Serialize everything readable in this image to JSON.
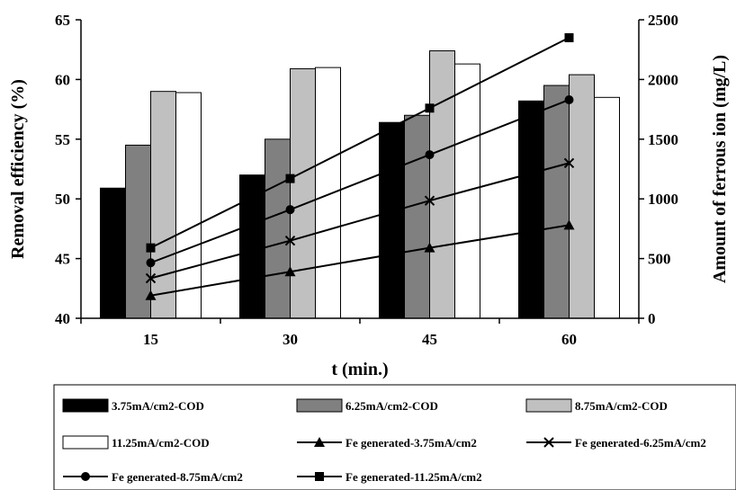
{
  "chart_data": {
    "type": "bar",
    "xlabel": "t (min.)",
    "ylabel": "Removal efficiency (%)",
    "y2label": "Amount of ferrous ion (mg/L)",
    "categories": [
      "15",
      "30",
      "45",
      "60"
    ],
    "ylim": [
      40,
      65
    ],
    "yticks": [
      "40",
      "45",
      "50",
      "55",
      "60",
      "65"
    ],
    "y2lim": [
      0,
      2500
    ],
    "y2ticks": [
      "0",
      "500",
      "1000",
      "1500",
      "2000",
      "2500"
    ],
    "grid": false,
    "legend_position": "bottom",
    "bar_series": [
      {
        "name": "3.75mA/cm2-COD",
        "color": "#000000",
        "values": [
          50.9,
          52.0,
          56.4,
          58.2
        ]
      },
      {
        "name": "6.25mA/cm2-COD",
        "color": "#808080",
        "values": [
          54.5,
          55.0,
          57.0,
          59.5
        ]
      },
      {
        "name": "8.75mA/cm2-COD",
        "color": "#c0c0c0",
        "values": [
          59.0,
          60.9,
          62.4,
          60.4
        ]
      },
      {
        "name": "11.25mA/cm2-COD",
        "color": "#ffffff",
        "values": [
          58.9,
          61.0,
          61.3,
          58.5
        ]
      }
    ],
    "line_series": [
      {
        "name": "Fe generated-3.75mA/cm2",
        "marker": "triangle",
        "values": [
          190,
          390,
          590,
          780
        ]
      },
      {
        "name": "Fe generated-6.25mA/cm2",
        "marker": "x",
        "values": [
          335,
          650,
          985,
          1300
        ]
      },
      {
        "name": "Fe generated-8.75mA/cm2",
        "marker": "circle",
        "values": [
          465,
          910,
          1370,
          1830
        ]
      },
      {
        "name": "Fe generated-11.25mA/cm2",
        "marker": "square",
        "values": [
          590,
          1170,
          1760,
          2350
        ]
      }
    ]
  }
}
